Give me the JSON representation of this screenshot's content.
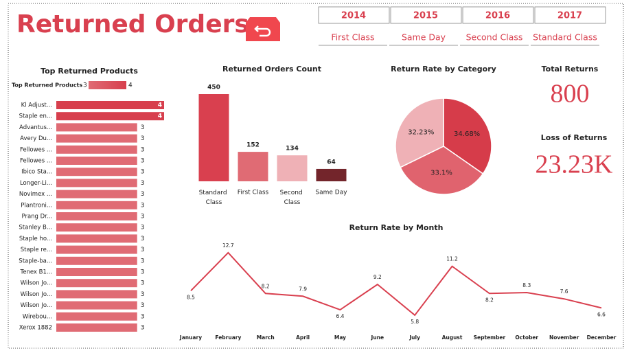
{
  "header": {
    "title": "Returned Orders"
  },
  "slicers": {
    "years": [
      "2014",
      "2015",
      "2016",
      "2017"
    ],
    "ship_modes": [
      "First Class",
      "Same Day",
      "Second Class",
      "Standard Class"
    ]
  },
  "kpis": [
    {
      "title": "Total Returns",
      "value": "800"
    },
    {
      "title": "Loss of Returns",
      "value": "23.23K"
    }
  ],
  "chart_data": [
    {
      "type": "hbar",
      "title": "Top Returned Products",
      "categories": [
        "Kl Adjust...",
        "Staple en...",
        "Advantus...",
        "Avery Du...",
        "Fellowes ...",
        "Fellowes ...",
        "Ibico Sta...",
        "Longer-Li...",
        "Novimex ...",
        "Plantroni...",
        "Prang Dr...",
        "Stanley B...",
        "Staple ho...",
        "Staple re...",
        "Staple-ba...",
        "Tenex B1...",
        "Wilson Jo...",
        "Wilson Jo...",
        "Wilson Jo...",
        "Wirebou...",
        "Xerox 1882"
      ],
      "values": [
        4,
        4,
        3,
        3,
        3,
        3,
        3,
        3,
        3,
        3,
        3,
        3,
        3,
        3,
        3,
        3,
        3,
        3,
        3,
        3,
        3
      ],
      "xlim": [
        0,
        4
      ],
      "legend": {
        "title": "Top Returned Products",
        "min": 3,
        "max": 4,
        "colors": [
          "#e06b74",
          "#d73f4d"
        ]
      }
    },
    {
      "type": "bar",
      "title": "Returned Orders Count",
      "categories": [
        "Standard Class",
        "First Class",
        "Second Class",
        "Same Day"
      ],
      "values": [
        450,
        152,
        134,
        64
      ],
      "colors": [
        "#d9404f",
        "#e06b74",
        "#efb1b6",
        "#73252b"
      ],
      "ylim": [
        0,
        450
      ]
    },
    {
      "type": "pie",
      "title": "Return Rate by Category",
      "values": [
        34.68,
        33.1,
        32.23
      ],
      "value_labels": [
        "34.68%",
        "33.1%",
        "32.23%"
      ],
      "colors": [
        "#d63c4a",
        "#e0636e",
        "#efb1b6"
      ]
    },
    {
      "type": "line",
      "title": "Return Rate by Month",
      "categories": [
        "January",
        "February",
        "March",
        "April",
        "May",
        "June",
        "July",
        "August",
        "September",
        "October",
        "November",
        "December"
      ],
      "values": [
        8.5,
        12.7,
        8.2,
        7.9,
        6.4,
        9.2,
        5.8,
        11.2,
        8.2,
        8.3,
        7.6,
        6.6
      ],
      "color": "#d9404f",
      "ylim": [
        5,
        13
      ]
    }
  ]
}
